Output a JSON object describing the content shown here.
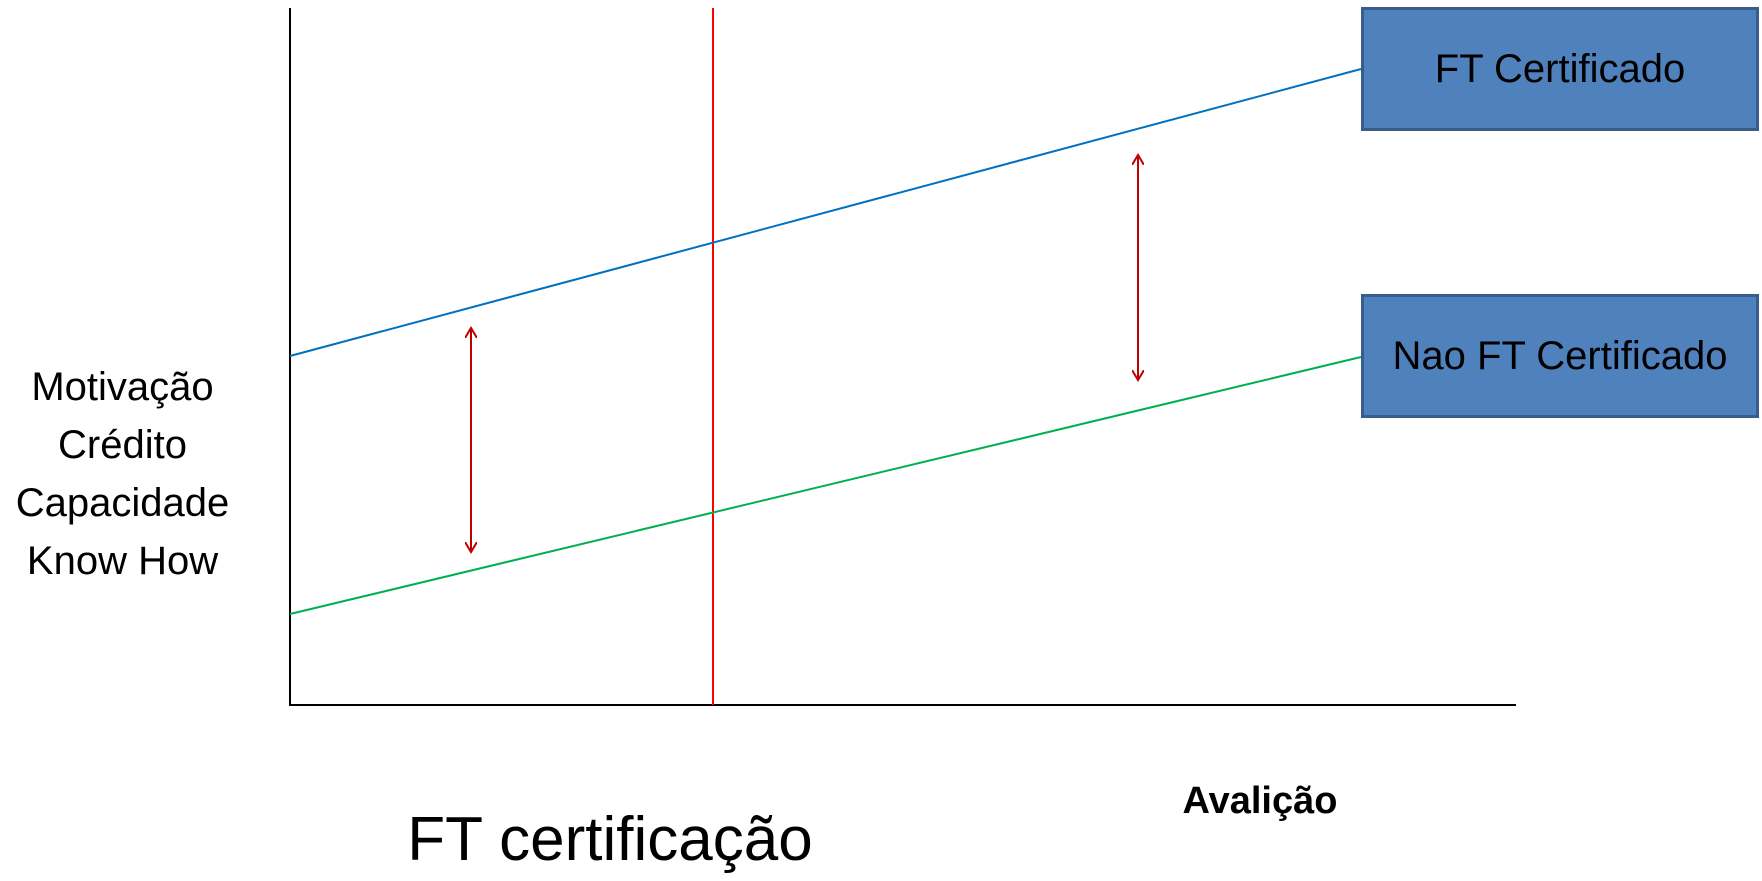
{
  "y_axis": {
    "label_lines": [
      "Motivação",
      "Crédito",
      "Capacidade",
      "Know How"
    ]
  },
  "x_axis": {
    "label": "Avalição"
  },
  "caption": "FT certificação",
  "legend": {
    "certified": "FT Certificado",
    "not_certified": "Nao FT Certificado"
  },
  "colors": {
    "certified_line": "#0070c0",
    "not_certified_line": "#00b050",
    "marker_line": "#ff0000",
    "gap_arrows": "#c00000",
    "legend_fill": "#4f81bd",
    "legend_border": "#385d8a",
    "axes": "#000000"
  },
  "chart_data": {
    "type": "line",
    "series": [
      {
        "name": "FT Certificado",
        "trend": "rising"
      },
      {
        "name": "Nao FT Certificado",
        "trend": "rising"
      }
    ],
    "annotations": [
      "vertical marker line",
      "gap arrow left",
      "gap arrow right"
    ],
    "grid": false
  }
}
